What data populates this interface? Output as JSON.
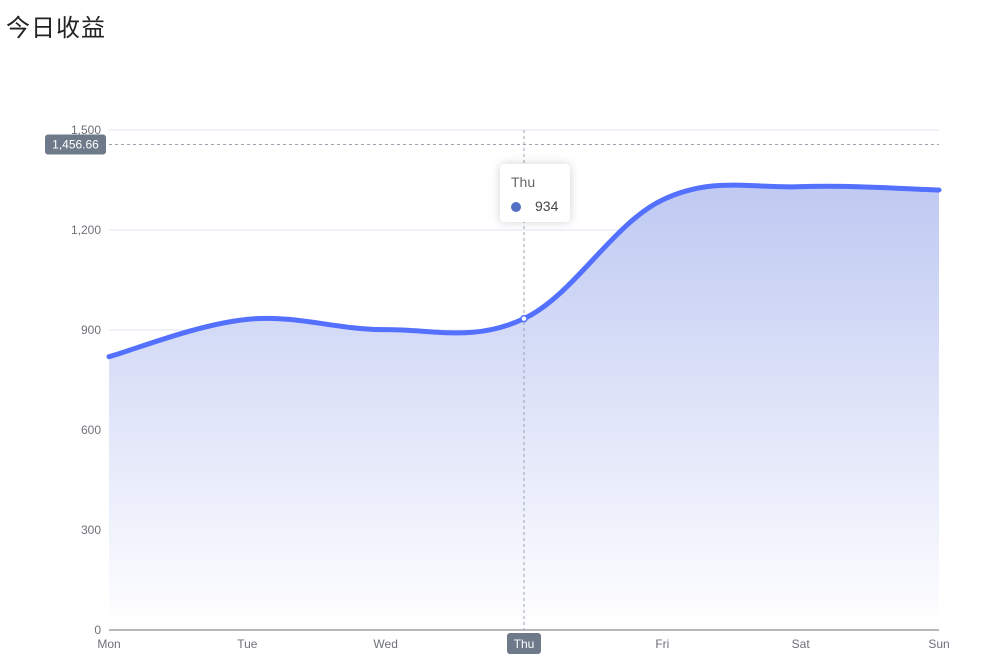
{
  "title": "今日收益",
  "colors": {
    "line": "#5470ff",
    "area_top": "#bfc9f2",
    "area_bottom": "#ffffff",
    "grid": "#e0e6f1",
    "pointer_label_bg": "#6e7a8a",
    "tooltip_dot": "#5470c6"
  },
  "chart_data": {
    "type": "area",
    "categories": [
      "Mon",
      "Tue",
      "Wed",
      "Thu",
      "Fri",
      "Sat",
      "Sun"
    ],
    "values": [
      820,
      932,
      901,
      934,
      1290,
      1330,
      1320
    ],
    "ylim": [
      0,
      1500
    ],
    "yticks": [
      0,
      300,
      600,
      900,
      1200,
      1500
    ],
    "ytick_labels": [
      "0",
      "300",
      "600",
      "900",
      "1,200",
      "1,500"
    ],
    "grid": true,
    "axis_pointer": {
      "category": "Thu",
      "y_value": 1456.66,
      "y_label": "1,456.66"
    },
    "tooltip": {
      "title": "Thu",
      "value": "934"
    }
  }
}
